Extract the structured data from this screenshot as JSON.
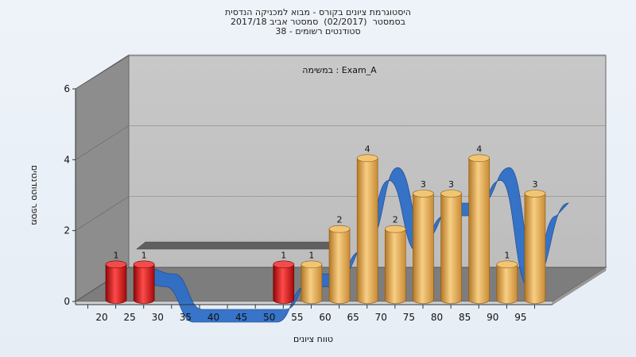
{
  "chart_data": {
    "type": "bar",
    "title_lines": [
      "היסטוגרמת ציונים בקורס - מבוא למכניקה הנדסית",
      "בסמסטר  (02/2017)  סמסטר אביב 2017/18",
      "סטודנטים רשומים - 38"
    ],
    "subtitle": "במשימה : Exam_A",
    "xlabel": "טווח ציונים",
    "ylabel": "מספר סטודנטים",
    "categories": [
      "20",
      "25",
      "30",
      "35",
      "40",
      "45",
      "50",
      "55",
      "60",
      "65",
      "70",
      "75",
      "80",
      "85",
      "90",
      "95"
    ],
    "values": [
      1,
      1,
      0,
      0,
      0,
      0,
      1,
      1,
      2,
      4,
      2,
      3,
      3,
      4,
      1,
      3
    ],
    "y_ticks": [
      "0",
      "2",
      "4",
      "6"
    ],
    "ylim": [
      0,
      6
    ],
    "colors": {
      "failing_bar": "#d81818",
      "passing_bar": "#e4a94a",
      "trend_ribbon": "#2f6ec6",
      "floor": "#7c7c7c",
      "back_wall": "#c4c4c4",
      "side_wall": "#8c8c8c"
    }
  }
}
